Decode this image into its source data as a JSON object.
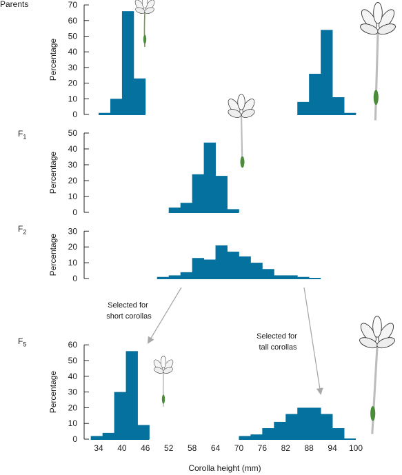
{
  "colors": {
    "bar": "#04719e",
    "axis": "#222222",
    "arrow": "#a8a8a8"
  },
  "xlabel": "Corolla height (mm)",
  "x_ticks": [
    34,
    40,
    46,
    52,
    58,
    64,
    70,
    76,
    82,
    88,
    94,
    100
  ],
  "ylabel": "Percentage",
  "bin_width": 3,
  "icons": [
    "flower-icon-short-parent",
    "flower-icon-tall-parent",
    "flower-icon-f1",
    "flower-icon-short-f5",
    "flower-icon-tall-f5"
  ],
  "annotations": {
    "short": [
      "Selected for",
      "short corollas"
    ],
    "tall": [
      "Selected for",
      "tall corollas"
    ]
  },
  "chart_data": [
    {
      "type": "bar",
      "panel_label": "Parents",
      "ylabel": "Percentage",
      "ylim": [
        0,
        70
      ],
      "yticks": [
        0,
        10,
        20,
        30,
        40,
        50,
        60,
        70
      ],
      "series": [
        {
          "x": [
            35.5,
            38.5,
            41.5,
            44.5
          ],
          "values": [
            1,
            10,
            66,
            23
          ]
        },
        {
          "x": [
            86.5,
            89.5,
            92.5,
            95.5,
            98.5
          ],
          "values": [
            8,
            26,
            54,
            11,
            1
          ]
        }
      ]
    },
    {
      "type": "bar",
      "panel_label": "F",
      "panel_sub": "1",
      "ylabel": "Percentage",
      "ylim": [
        0,
        50
      ],
      "yticks": [
        0,
        10,
        20,
        30,
        40,
        50
      ],
      "series": [
        {
          "x": [
            53.5,
            56.5,
            59.5,
            62.5,
            65.5,
            68.5
          ],
          "values": [
            3,
            6,
            24,
            44,
            23,
            2
          ]
        }
      ]
    },
    {
      "type": "bar",
      "panel_label": "F",
      "panel_sub": "2",
      "ylabel": "Percentage",
      "ylim": [
        0,
        30
      ],
      "yticks": [
        0,
        10,
        20,
        30
      ],
      "series": [
        {
          "x": [
            50.5,
            53.5,
            56.5,
            59.5,
            62.5,
            65.5,
            68.5,
            71.5,
            74.5,
            77.5,
            80.5,
            83.5,
            86.5,
            89.5
          ],
          "values": [
            1,
            2,
            4,
            13,
            12,
            21,
            17,
            14,
            10,
            6,
            2,
            2,
            1,
            0
          ]
        }
      ]
    },
    {
      "type": "bar",
      "panel_label": "F",
      "panel_sub": "5",
      "ylabel": "Percentage",
      "ylim": [
        0,
        60
      ],
      "yticks": [
        0,
        10,
        20,
        30,
        40,
        50,
        60
      ],
      "series": [
        {
          "x": [
            33.5,
            36.5,
            39.5,
            42.5,
            45.5
          ],
          "values": [
            2,
            4,
            30,
            56,
            9
          ]
        },
        {
          "x": [
            71.5,
            74.5,
            77.5,
            80.5,
            83.5,
            86.5,
            89.5,
            92.5,
            95.5,
            98.5
          ],
          "values": [
            2,
            3,
            7,
            11,
            16,
            20,
            20,
            16,
            7,
            0
          ]
        }
      ]
    }
  ]
}
